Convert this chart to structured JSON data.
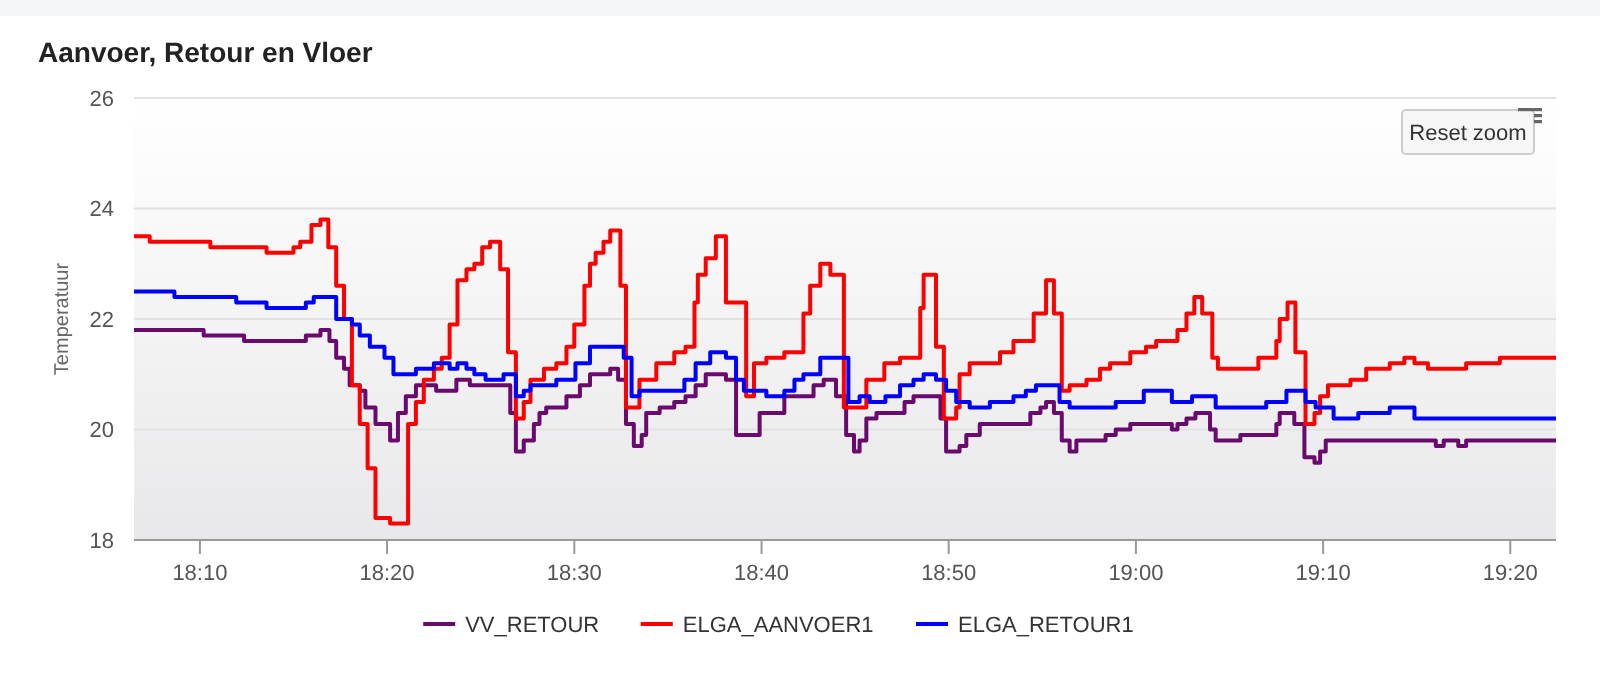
{
  "chart_data": {
    "type": "step",
    "title": "Aanvoer, Retour en Vloer",
    "ylabel": "Temperatuur",
    "annotations": [
      "Reset zoom"
    ],
    "xlim": [
      18.108,
      19.374
    ],
    "xticks": [
      {
        "value": 18.1667,
        "label": "18:10"
      },
      {
        "value": 18.3333,
        "label": "18:20"
      },
      {
        "value": 18.5,
        "label": "18:30"
      },
      {
        "value": 18.6667,
        "label": "18:40"
      },
      {
        "value": 18.8333,
        "label": "18:50"
      },
      {
        "value": 19,
        "label": "19:00"
      },
      {
        "value": 19.1667,
        "label": "19:10"
      },
      {
        "value": 19.3333,
        "label": "19:20"
      }
    ],
    "ylim": [
      18,
      26
    ],
    "yticks": [
      18,
      20,
      22,
      24,
      26
    ],
    "grid": "y",
    "legend": "bottom",
    "series": [
      {
        "name": "VV_RETOUR",
        "color": "#6a0a6e",
        "x": [
          18.108,
          18.17,
          18.206,
          18.261,
          18.274,
          18.282,
          18.288,
          18.295,
          18.3,
          18.309,
          18.314,
          18.323,
          18.336,
          18.343,
          18.35,
          18.359,
          18.377,
          18.395,
          18.407,
          18.443,
          18.448,
          18.455,
          18.464,
          18.469,
          18.475,
          18.493,
          18.505,
          18.514,
          18.532,
          18.539,
          18.546,
          18.553,
          18.56,
          18.564,
          18.576,
          18.589,
          18.599,
          18.608,
          18.617,
          18.635,
          18.644,
          18.665,
          18.687,
          18.713,
          18.722,
          18.733,
          18.742,
          18.749,
          18.754,
          18.76,
          18.769,
          18.794,
          18.802,
          18.826,
          18.831,
          18.843,
          18.849,
          18.861,
          18.906,
          18.915,
          18.92,
          18.927,
          18.934,
          18.941,
          18.947,
          18.973,
          18.982,
          18.995,
          19.032,
          19.037,
          19.045,
          19.053,
          19.066,
          19.071,
          19.093,
          19.125,
          19.128,
          19.141,
          19.15,
          19.159,
          19.164,
          19.169,
          19.267,
          19.274,
          19.287,
          19.294,
          19.374
        ],
        "values": [
          21.8,
          21.7,
          21.6,
          21.7,
          21.8,
          21.6,
          21.3,
          21.1,
          20.8,
          20.7,
          20.4,
          20.1,
          19.8,
          20.3,
          20.6,
          20.8,
          20.7,
          20.9,
          20.8,
          20.3,
          19.6,
          19.8,
          20.1,
          20.3,
          20.4,
          20.6,
          20.8,
          21.0,
          21.1,
          20.9,
          20.1,
          19.7,
          19.9,
          20.3,
          20.4,
          20.5,
          20.6,
          20.8,
          21.0,
          20.9,
          19.9,
          20.3,
          20.6,
          20.8,
          20.9,
          20.6,
          19.9,
          19.6,
          19.8,
          20.2,
          20.3,
          20.5,
          20.6,
          20.2,
          19.6,
          19.7,
          19.9,
          20.1,
          20.3,
          20.4,
          20.5,
          20.3,
          19.8,
          19.6,
          19.8,
          19.9,
          20.0,
          20.1,
          20.0,
          20.1,
          20.2,
          20.3,
          20.0,
          19.8,
          19.9,
          20.1,
          20.3,
          20.1,
          19.5,
          19.4,
          19.6,
          19.8,
          19.7,
          19.8,
          19.7,
          19.8,
          19.8
        ]
      },
      {
        "name": "ELGA_AANVOER1",
        "color": "#ff0000",
        "x": [
          18.108,
          18.122,
          18.176,
          18.226,
          18.25,
          18.256,
          18.266,
          18.274,
          18.281,
          18.288,
          18.295,
          18.302,
          18.309,
          18.316,
          18.323,
          18.336,
          18.352,
          18.359,
          18.366,
          18.375,
          18.382,
          18.389,
          18.396,
          18.404,
          18.411,
          18.418,
          18.425,
          18.434,
          18.441,
          18.448,
          18.455,
          18.461,
          18.473,
          18.484,
          18.493,
          18.5,
          18.509,
          18.514,
          18.519,
          18.526,
          18.532,
          18.541,
          18.546,
          18.558,
          18.573,
          18.589,
          18.599,
          18.607,
          18.61,
          18.617,
          18.626,
          18.635,
          18.653,
          18.66,
          18.671,
          18.687,
          18.704,
          18.71,
          18.719,
          18.728,
          18.74,
          18.76,
          18.776,
          18.79,
          18.808,
          18.811,
          18.822,
          18.829,
          18.84,
          18.843,
          18.852,
          18.879,
          18.891,
          18.909,
          18.92,
          18.927,
          18.934,
          18.941,
          18.956,
          18.968,
          18.977,
          18.995,
          19.009,
          19.018,
          19.037,
          19.045,
          19.052,
          19.059,
          19.068,
          19.073,
          19.109,
          19.125,
          19.128,
          19.135,
          19.142,
          19.151,
          19.159,
          19.164,
          19.171,
          19.191,
          19.205,
          19.226,
          19.239,
          19.248,
          19.26,
          19.294,
          19.324,
          19.374
        ],
        "values": [
          23.5,
          23.4,
          23.3,
          23.2,
          23.3,
          23.4,
          23.7,
          23.8,
          23.3,
          22.6,
          22.0,
          20.8,
          20.1,
          19.3,
          18.4,
          18.3,
          20.1,
          20.5,
          20.9,
          21.1,
          21.3,
          21.9,
          22.7,
          22.9,
          23.0,
          23.3,
          23.4,
          22.9,
          21.4,
          20.2,
          20.5,
          20.9,
          21.1,
          21.2,
          21.5,
          21.9,
          22.6,
          23.0,
          23.2,
          23.4,
          23.6,
          22.6,
          20.4,
          20.9,
          21.2,
          21.4,
          21.5,
          22.3,
          22.8,
          23.1,
          23.5,
          22.3,
          20.6,
          21.2,
          21.3,
          21.4,
          22.1,
          22.6,
          23.0,
          22.8,
          20.4,
          20.9,
          21.2,
          21.3,
          22.2,
          22.8,
          21.5,
          20.2,
          20.4,
          21.0,
          21.2,
          21.4,
          21.6,
          22.1,
          22.7,
          22.1,
          20.7,
          20.8,
          20.9,
          21.1,
          21.2,
          21.4,
          21.5,
          21.6,
          21.8,
          22.1,
          22.4,
          22.1,
          21.3,
          21.1,
          21.3,
          21.6,
          22.0,
          22.3,
          21.4,
          20.1,
          20.3,
          20.6,
          20.8,
          20.9,
          21.1,
          21.2,
          21.3,
          21.2,
          21.1,
          21.2,
          21.3,
          21.3
        ]
      },
      {
        "name": "ELGA_RETOUR1",
        "color": "#0000ff",
        "x": [
          18.108,
          18.144,
          18.199,
          18.226,
          18.261,
          18.268,
          18.288,
          18.302,
          18.309,
          18.318,
          18.331,
          18.339,
          18.359,
          18.375,
          18.389,
          18.396,
          18.404,
          18.411,
          18.421,
          18.437,
          18.448,
          18.455,
          18.461,
          18.484,
          18.501,
          18.514,
          18.544,
          18.551,
          18.558,
          18.598,
          18.608,
          18.621,
          18.635,
          18.644,
          18.651,
          18.671,
          18.687,
          18.696,
          18.704,
          18.719,
          18.744,
          18.754,
          18.763,
          18.777,
          18.79,
          18.802,
          18.811,
          18.822,
          18.831,
          18.84,
          18.852,
          18.87,
          18.891,
          18.902,
          18.911,
          18.932,
          18.941,
          18.982,
          19.007,
          19.032,
          19.05,
          19.071,
          19.116,
          19.134,
          19.151,
          19.16,
          19.176,
          19.198,
          19.226,
          19.248,
          19.374
        ],
        "values": [
          22.5,
          22.4,
          22.3,
          22.2,
          22.3,
          22.4,
          22.0,
          21.9,
          21.7,
          21.5,
          21.3,
          21.0,
          21.1,
          21.2,
          21.1,
          21.2,
          21.1,
          21.0,
          20.9,
          21.0,
          20.6,
          20.7,
          20.8,
          20.9,
          21.2,
          21.5,
          21.3,
          20.6,
          20.7,
          20.9,
          21.2,
          21.4,
          21.3,
          20.9,
          20.7,
          20.6,
          20.7,
          20.9,
          21.0,
          21.3,
          20.5,
          20.6,
          20.5,
          20.6,
          20.8,
          20.9,
          21.0,
          20.9,
          20.7,
          20.5,
          20.4,
          20.5,
          20.6,
          20.7,
          20.8,
          20.5,
          20.4,
          20.5,
          20.7,
          20.5,
          20.6,
          20.4,
          20.5,
          20.7,
          20.5,
          20.4,
          20.2,
          20.3,
          20.4,
          20.2,
          20.2
        ]
      }
    ]
  }
}
